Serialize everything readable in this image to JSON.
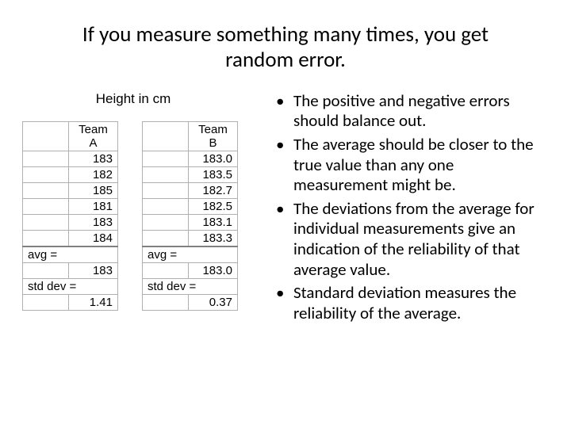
{
  "title": "If you measure something many times, you get random error.",
  "table_caption": "Height in cm",
  "tables": {
    "teamA": {
      "header": "Team A",
      "rows": [
        "183",
        "182",
        "185",
        "181",
        "183",
        "184"
      ],
      "avg_label": "avg =",
      "avg_value": "183",
      "std_label": "std dev =",
      "std_value": "1.41"
    },
    "teamB": {
      "header": "Team B",
      "rows": [
        "183.0",
        "183.5",
        "182.7",
        "182.5",
        "183.1",
        "183.3"
      ],
      "avg_label": "avg =",
      "avg_value": "183.0",
      "std_label": "std dev =",
      "std_value": "0.37"
    }
  },
  "bullets": [
    "The positive and negative errors should balance out.",
    "The average should be closer to the true value than any one measurement might be.",
    "The deviations from the average for individual measurements give an indication of the reliability of that average value.",
    "Standard deviation measures the reliability of the average."
  ],
  "colors": {
    "background": "#ffffff",
    "text": "#000000",
    "border": "#b0b0b0",
    "sep": "#808080"
  },
  "fonts": {
    "title_size": 27,
    "body_size": 21,
    "table_size": 15,
    "caption_size": 17
  }
}
